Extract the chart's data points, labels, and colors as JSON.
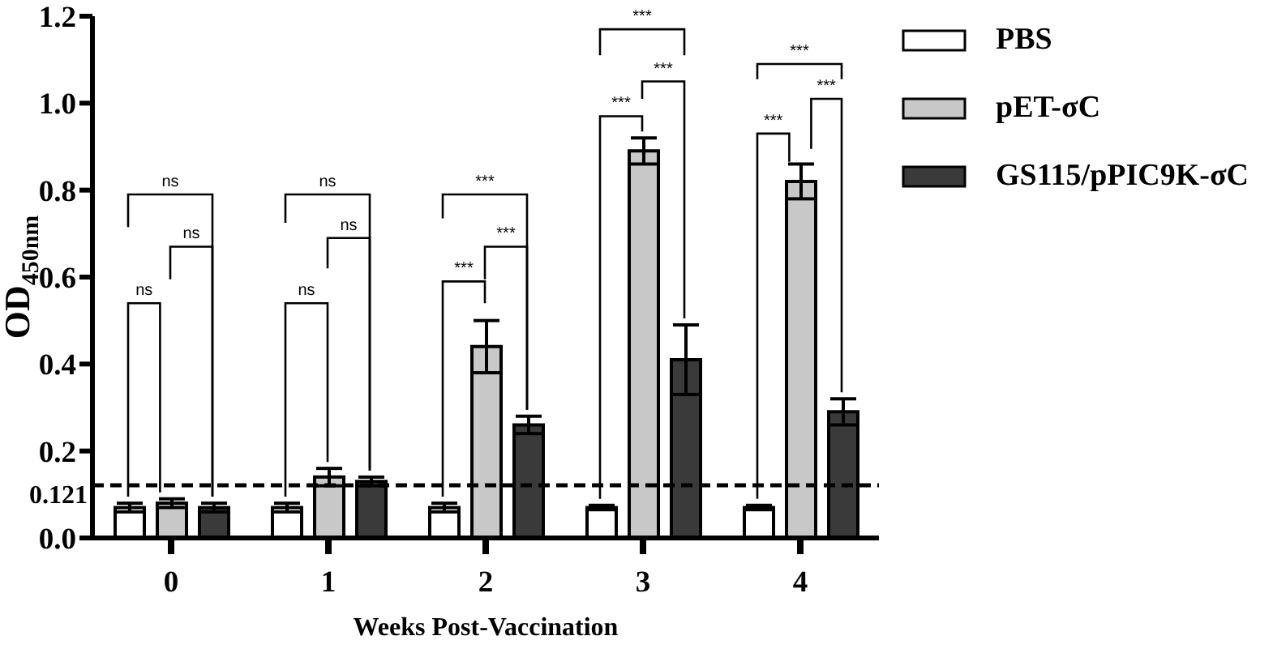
{
  "chart_data": {
    "type": "bar",
    "xlabel": "Weeks Post-Vaccination",
    "ylabel": "OD$_{450nm}$",
    "categories": [
      "0",
      "1",
      "2",
      "3",
      "4"
    ],
    "series": [
      {
        "name": "PBS",
        "color": "#ffffff",
        "values": [
          0.07,
          0.07,
          0.07,
          0.07,
          0.07
        ],
        "errors": [
          0.01,
          0.01,
          0.01,
          0.005,
          0.005
        ]
      },
      {
        "name": "pET-σC",
        "color": "#c8c8c8",
        "values": [
          0.08,
          0.14,
          0.44,
          0.89,
          0.82
        ],
        "errors": [
          0.01,
          0.02,
          0.06,
          0.03,
          0.04
        ]
      },
      {
        "name": "GS115/pPIC9K-σC",
        "color": "#3a3a3a",
        "values": [
          0.07,
          0.13,
          0.26,
          0.41,
          0.29
        ],
        "errors": [
          0.01,
          0.01,
          0.02,
          0.08,
          0.03
        ]
      }
    ],
    "ylim": [
      0,
      1.2
    ],
    "yticks": [
      {
        "value": 0,
        "label": "0.0"
      },
      0.2,
      0.4,
      0.6,
      0.8,
      {
        "value": 1,
        "label": "1.0"
      },
      1.2
    ],
    "ref_lines": [
      {
        "axis": "y",
        "value": 0.121,
        "label": "0.121",
        "line_style": "dashed",
        "color": "#000000"
      }
    ],
    "annotations": [
      "ns",
      "ns",
      "ns",
      "ns",
      "ns",
      "ns",
      "***",
      "***",
      "***",
      "***",
      "***",
      "***",
      "***",
      "***",
      "***"
    ],
    "legend": "top right"
  }
}
